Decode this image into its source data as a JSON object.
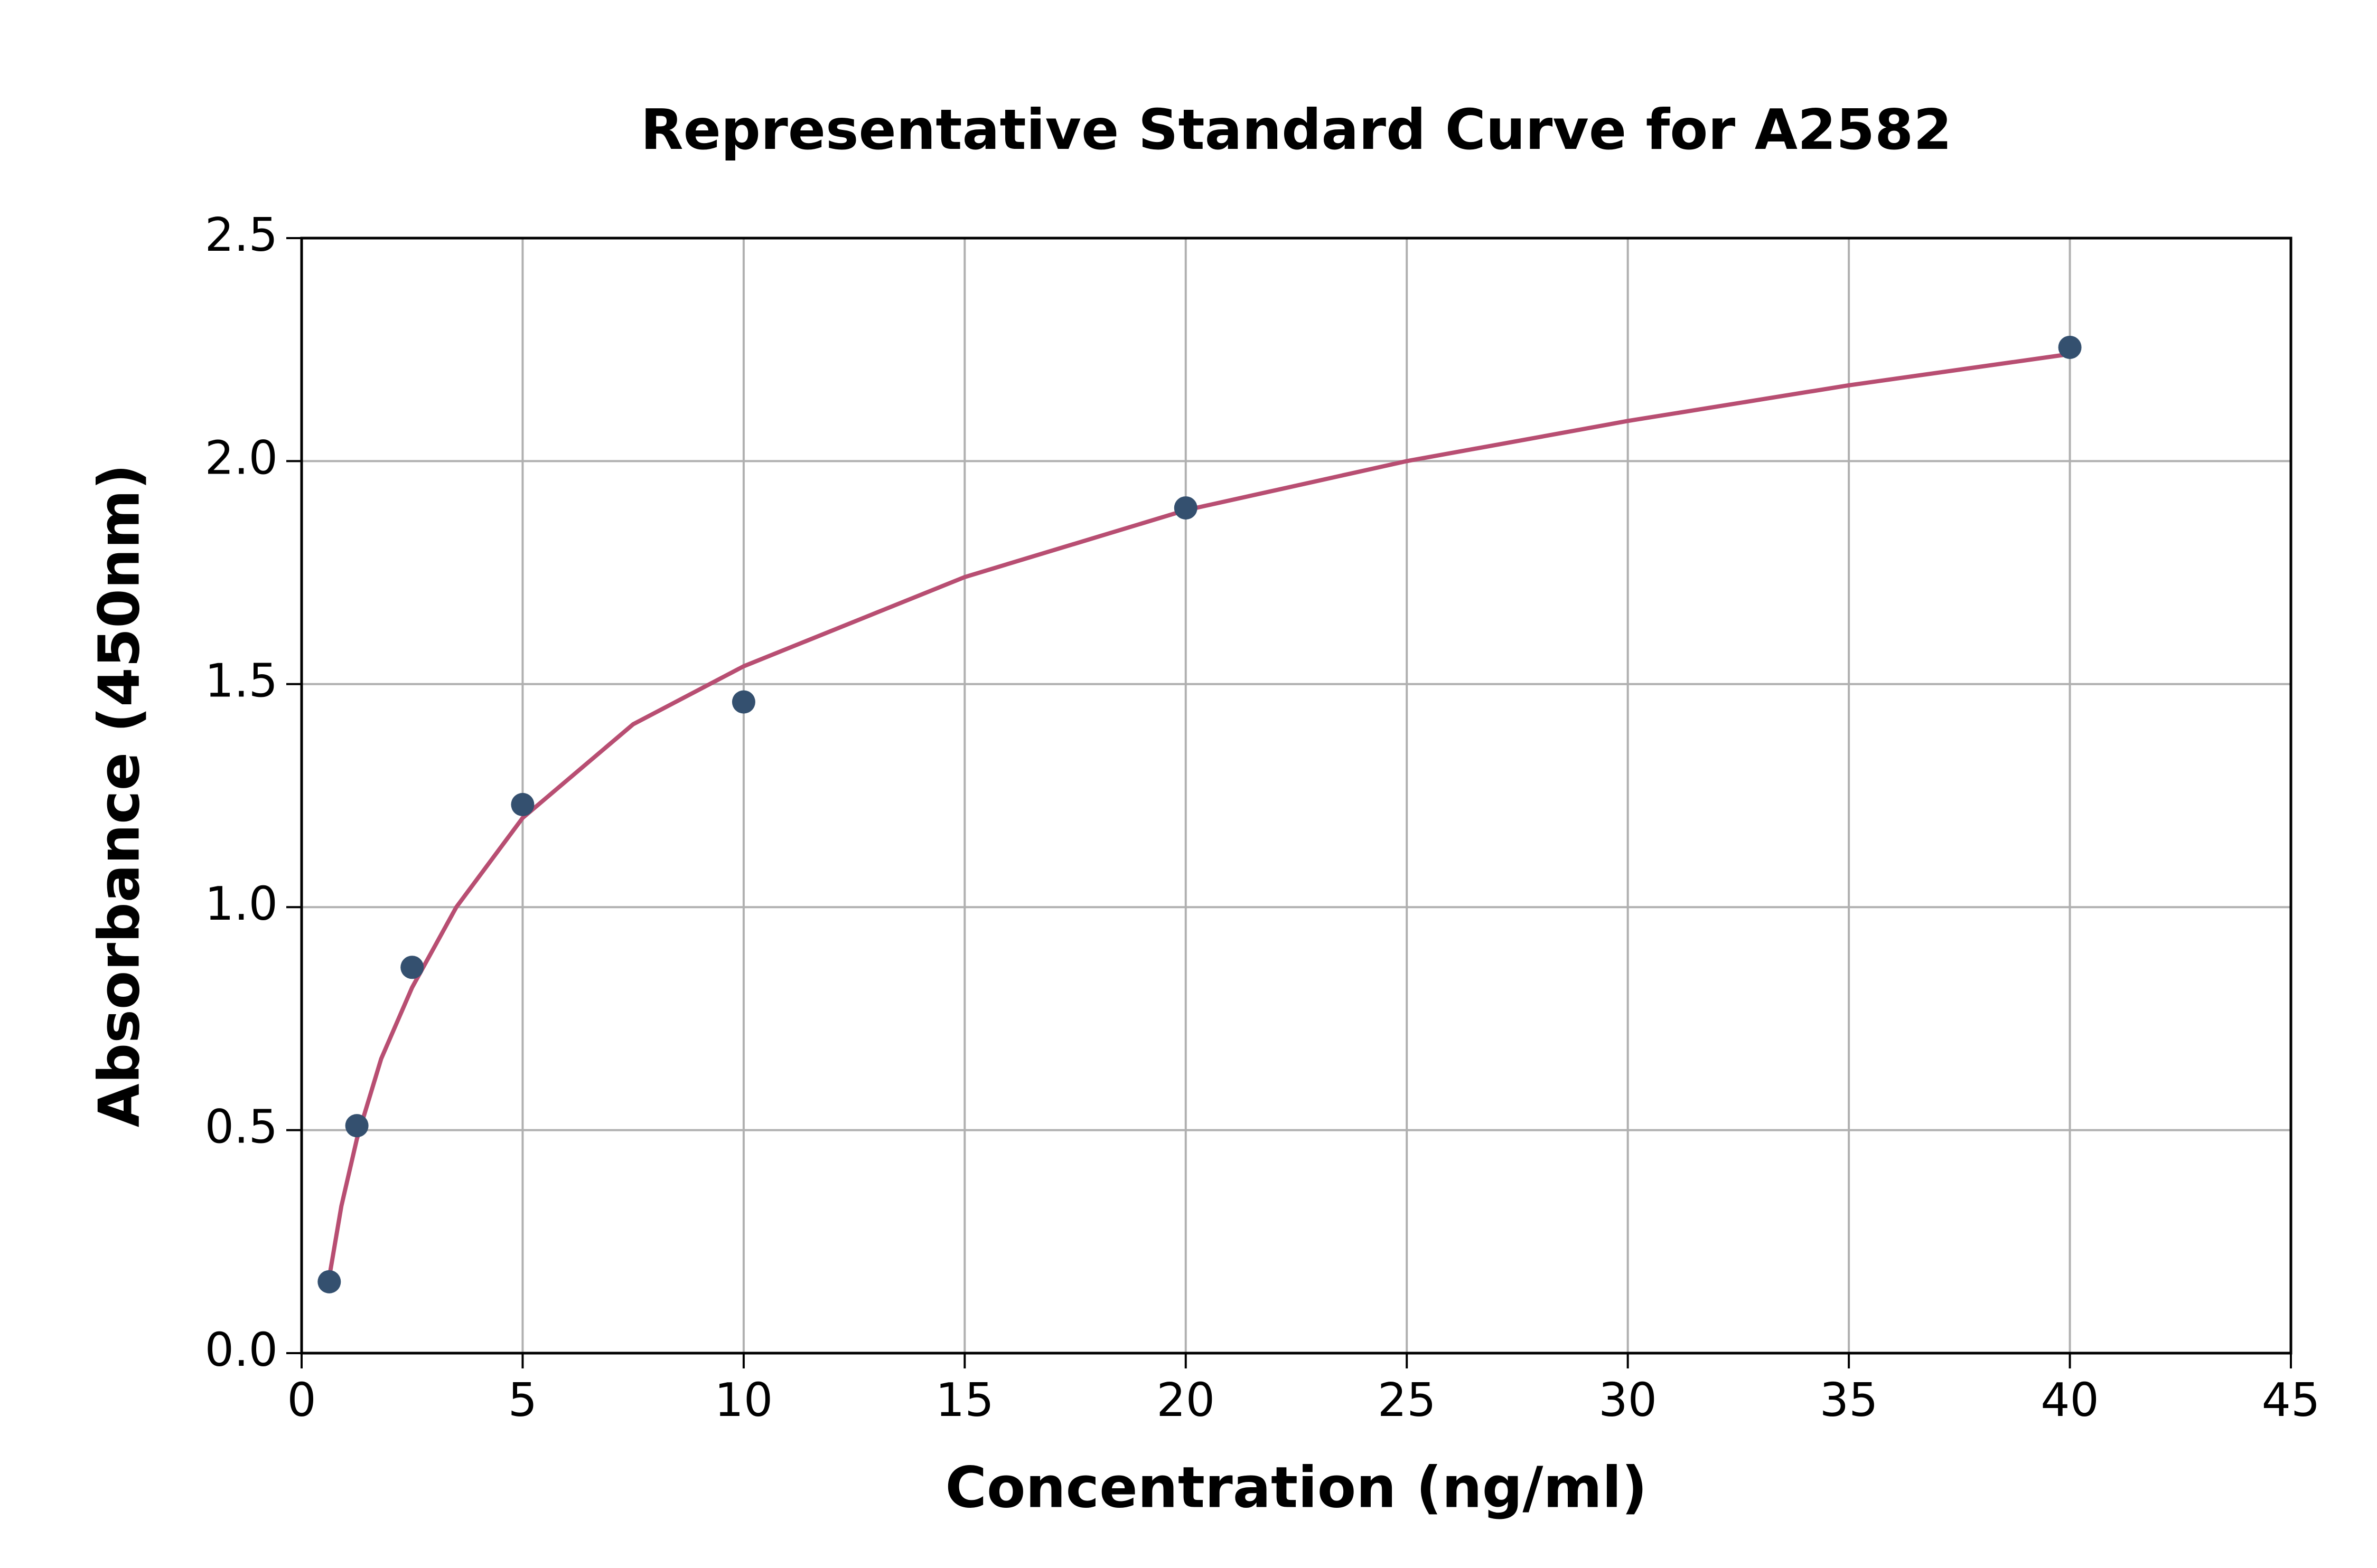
{
  "chart_data": {
    "type": "scatter",
    "title": "Representative Standard Curve for A2582",
    "x_label": "Concentration (ng/ml)",
    "y_label": "Absorbance (450nm)",
    "series": [
      {
        "type": "scatter",
        "color": "#34506f",
        "x": [
          0.625,
          1.25,
          2.5,
          5,
          10,
          20,
          40
        ],
        "y": [
          0.16,
          0.51,
          0.865,
          1.23,
          1.46,
          1.895,
          2.255
        ]
      },
      {
        "type": "line",
        "color": "#b84e72",
        "x": [
          0.625,
          0.9,
          1.25,
          1.8,
          2.5,
          3.5,
          5,
          7.5,
          10,
          15,
          20,
          25,
          30,
          35,
          40
        ],
        "y": [
          0.17,
          0.33,
          0.48,
          0.66,
          0.82,
          1.0,
          1.2,
          1.41,
          1.54,
          1.74,
          1.89,
          2.0,
          2.09,
          2.17,
          2.24
        ]
      }
    ],
    "xlim": [
      0,
      45
    ],
    "xticks": [
      0,
      5,
      10,
      15,
      20,
      25,
      30,
      35,
      40,
      45
    ],
    "ylim": [
      0,
      2.5
    ],
    "yticks": [
      {
        "value": 0,
        "label": "0.0"
      },
      0.5,
      {
        "value": 1,
        "label": "1.0"
      },
      1.5,
      {
        "value": 2,
        "label": "2.0"
      },
      2.5
    ],
    "grid": true
  }
}
